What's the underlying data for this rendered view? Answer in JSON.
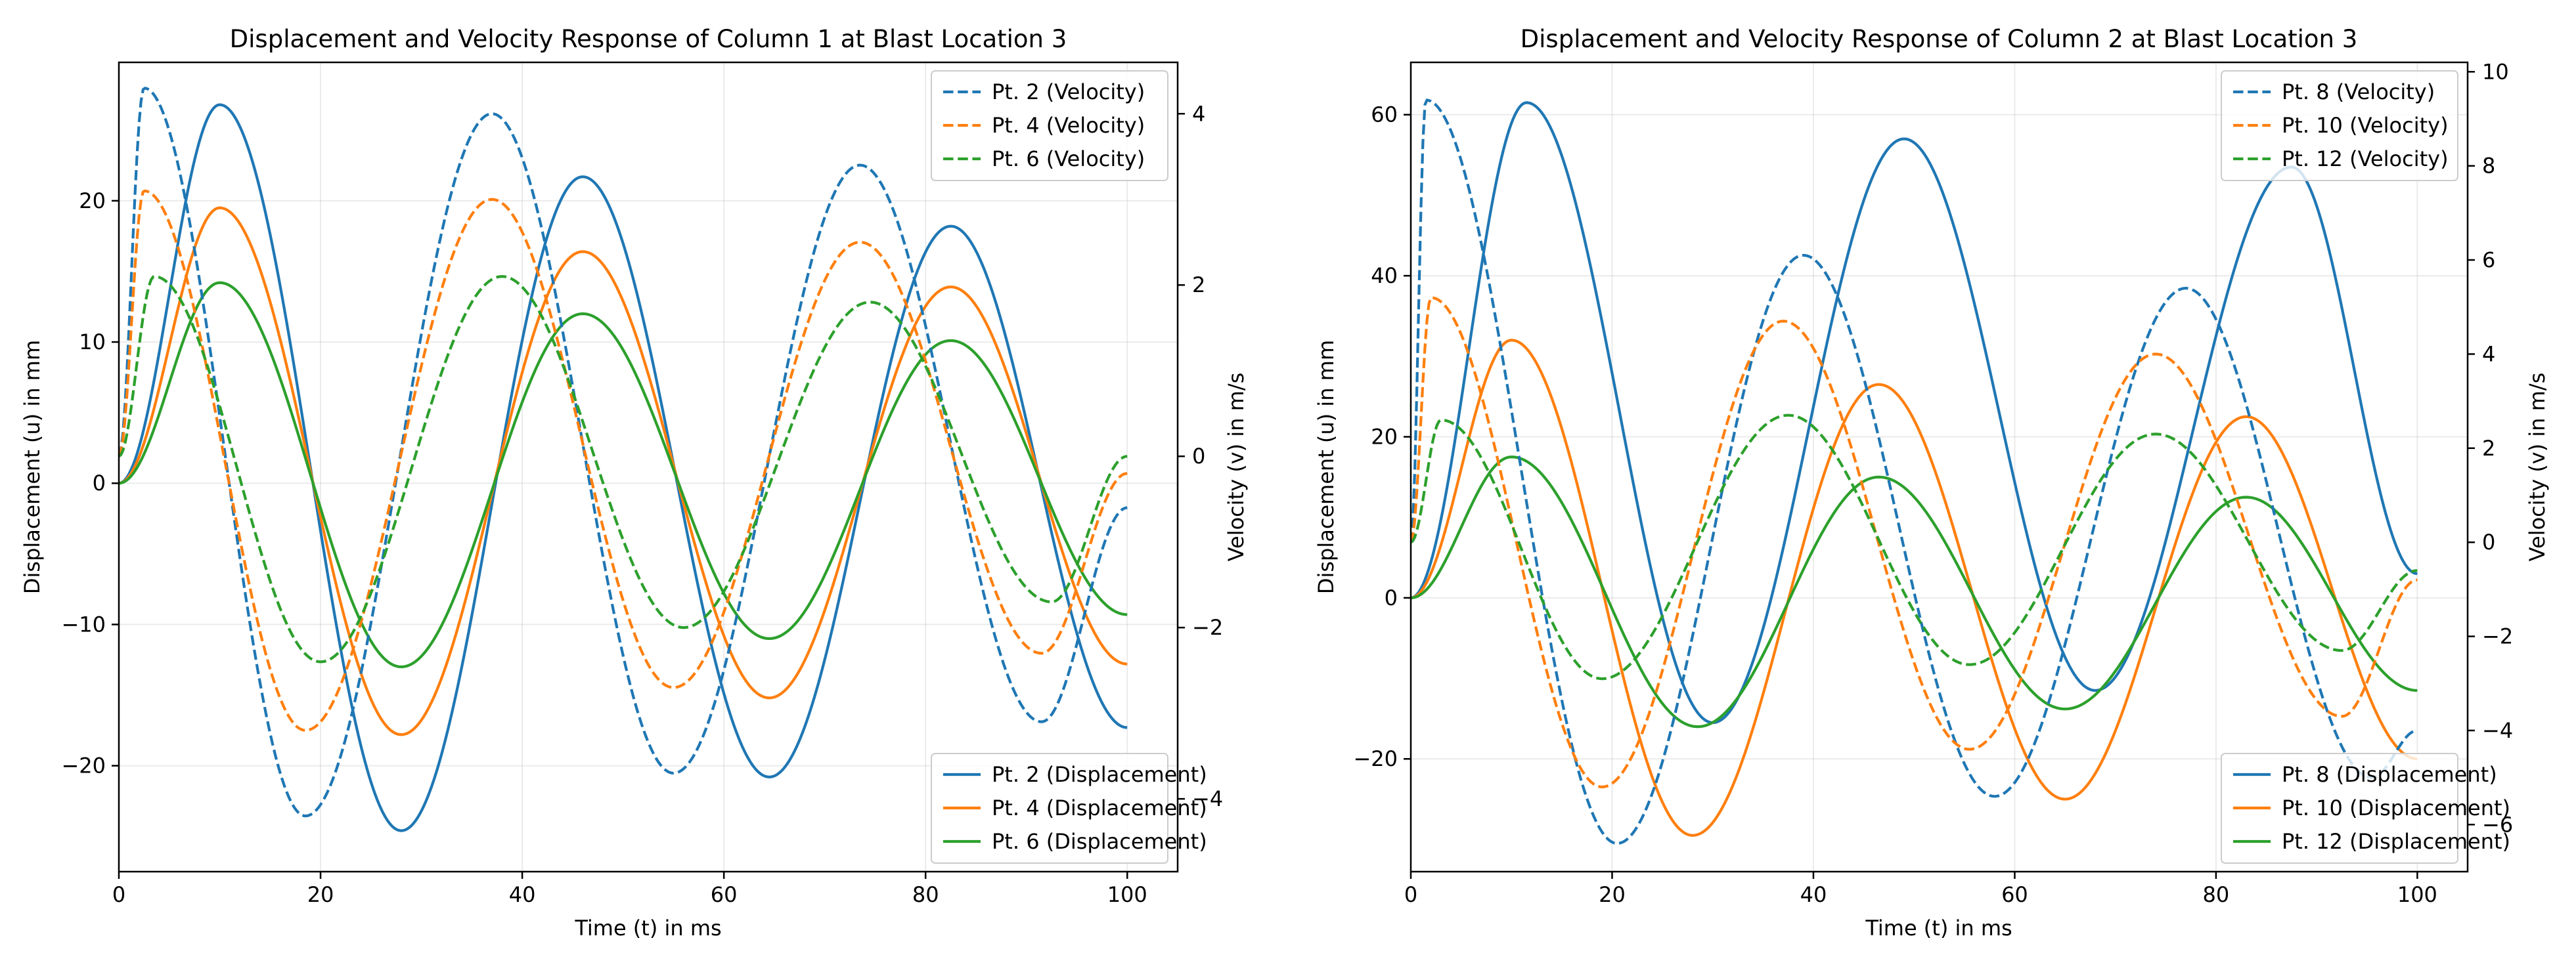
{
  "figure": {
    "background": "#ffffff"
  },
  "chart_data": [
    {
      "type": "line",
      "title": "Displacement and Velocity Response of Column 1 at Blast Location 3",
      "xlabel": "Time (t) in ms",
      "ylabel": "Displacement (u) in mm",
      "y2label": "Velocity (v) in m/s",
      "xlim": [
        0,
        105
      ],
      "ylim": [
        -27.5,
        29.8
      ],
      "y2lim": [
        -4.85,
        4.6
      ],
      "xticks": [
        0,
        20,
        40,
        60,
        80,
        100
      ],
      "yticks": [
        -20,
        -10,
        0,
        10,
        20
      ],
      "y2ticks": [
        -4,
        -2,
        0,
        2,
        4
      ],
      "grid": true,
      "legend_velocity": "top-right",
      "legend_displacement": "bottom-right",
      "x": [
        0,
        5,
        10,
        15,
        20,
        25,
        30,
        35,
        40,
        45,
        50,
        55,
        60,
        65,
        70,
        75,
        80,
        85,
        90,
        95,
        100
      ],
      "series": [
        {
          "name": "Pt. 2 (Displacement)",
          "axis": "left",
          "style": "solid",
          "color": "#1f77b4",
          "peaks": [
            [
              0,
              0
            ],
            [
              10,
              26.8
            ],
            [
              28,
              -24.6
            ],
            [
              46,
              21.7
            ],
            [
              64.5,
              -20.8
            ],
            [
              82.5,
              18.2
            ],
            [
              100,
              -17.3
            ]
          ]
        },
        {
          "name": "Pt. 4 (Displacement)",
          "axis": "left",
          "style": "solid",
          "color": "#ff7f0e",
          "peaks": [
            [
              0,
              0
            ],
            [
              10,
              19.5
            ],
            [
              28,
              -17.8
            ],
            [
              46,
              16.4
            ],
            [
              64.5,
              -15.2
            ],
            [
              82.5,
              13.9
            ],
            [
              100,
              -12.8
            ]
          ]
        },
        {
          "name": "Pt. 6 (Displacement)",
          "axis": "left",
          "style": "solid",
          "color": "#2ca02c",
          "peaks": [
            [
              0,
              0
            ],
            [
              10,
              14.2
            ],
            [
              28,
              -13.0
            ],
            [
              46,
              12.0
            ],
            [
              64.5,
              -11.0
            ],
            [
              82.5,
              10.1
            ],
            [
              100,
              -9.3
            ]
          ]
        },
        {
          "name": "Pt. 2 (Velocity)",
          "axis": "right",
          "style": "dashed",
          "color": "#1f77b4",
          "peaks": [
            [
              0,
              0
            ],
            [
              2.5,
              4.3
            ],
            [
              18.5,
              -4.2
            ],
            [
              37,
              4.0
            ],
            [
              55,
              -3.7
            ],
            [
              73.5,
              3.4
            ],
            [
              91.5,
              -3.1
            ],
            [
              100,
              -0.6
            ]
          ]
        },
        {
          "name": "Pt. 4 (Velocity)",
          "axis": "right",
          "style": "dashed",
          "color": "#ff7f0e",
          "peaks": [
            [
              0,
              0
            ],
            [
              2.5,
              3.1
            ],
            [
              18.5,
              -3.2
            ],
            [
              37,
              3.0
            ],
            [
              55,
              -2.7
            ],
            [
              73.5,
              2.5
            ],
            [
              91.5,
              -2.3
            ],
            [
              100,
              -0.2
            ]
          ]
        },
        {
          "name": "Pt. 6 (Velocity)",
          "axis": "right",
          "style": "dashed",
          "color": "#2ca02c",
          "peaks": [
            [
              0,
              0
            ],
            [
              3.5,
              2.1
            ],
            [
              20,
              -2.4
            ],
            [
              38,
              2.1
            ],
            [
              56,
              -2.0
            ],
            [
              74.5,
              1.8
            ],
            [
              92.5,
              -1.7
            ],
            [
              100,
              0.0
            ]
          ]
        }
      ]
    },
    {
      "type": "line",
      "title": "Displacement and Velocity Response of Column 2 at Blast Location 3",
      "xlabel": "Time (t) in ms",
      "ylabel": "Displacement (u) in mm",
      "y2label": "Velocity (v) in m/s",
      "xlim": [
        0,
        105
      ],
      "ylim": [
        -34,
        66.5
      ],
      "y2lim": [
        -7.0,
        10.2
      ],
      "xticks": [
        0,
        20,
        40,
        60,
        80,
        100
      ],
      "yticks": [
        -20,
        0,
        20,
        40,
        60
      ],
      "y2ticks": [
        -6,
        -4,
        -2,
        0,
        2,
        4,
        6,
        8,
        10
      ],
      "grid": true,
      "legend_velocity": "top-right",
      "legend_displacement": "bottom-right",
      "x": [
        0,
        5,
        10,
        15,
        20,
        25,
        30,
        35,
        40,
        45,
        50,
        55,
        60,
        65,
        70,
        75,
        80,
        85,
        90,
        95,
        100
      ],
      "series": [
        {
          "name": "Pt. 8 (Displacement)",
          "axis": "left",
          "style": "solid",
          "color": "#1f77b4",
          "peaks": [
            [
              0,
              0
            ],
            [
              11.5,
              61.5
            ],
            [
              30,
              -15.5
            ],
            [
              49,
              57.0
            ],
            [
              68,
              -11.5
            ],
            [
              87.5,
              53.5
            ],
            [
              100,
              3.0
            ]
          ]
        },
        {
          "name": "Pt. 10 (Displacement)",
          "axis": "left",
          "style": "solid",
          "color": "#ff7f0e",
          "peaks": [
            [
              0,
              0
            ],
            [
              10,
              32.0
            ],
            [
              28,
              -29.5
            ],
            [
              46.5,
              26.5
            ],
            [
              65,
              -25.0
            ],
            [
              83,
              22.5
            ],
            [
              100,
              -20.0
            ]
          ]
        },
        {
          "name": "Pt. 12 (Displacement)",
          "axis": "left",
          "style": "solid",
          "color": "#2ca02c",
          "peaks": [
            [
              0,
              0
            ],
            [
              10,
              17.5
            ],
            [
              28.5,
              -16.0
            ],
            [
              46.5,
              15.0
            ],
            [
              65,
              -13.8
            ],
            [
              83,
              12.5
            ],
            [
              100,
              -11.5
            ]
          ]
        },
        {
          "name": "Pt. 8 (Velocity)",
          "axis": "right",
          "style": "dashed",
          "color": "#1f77b4",
          "peaks": [
            [
              0,
              0
            ],
            [
              1.5,
              9.4
            ],
            [
              20.5,
              -6.4
            ],
            [
              39,
              6.1
            ],
            [
              58,
              -5.4
            ],
            [
              77,
              5.4
            ],
            [
              95.5,
              -5.0
            ],
            [
              100,
              -4.0
            ]
          ]
        },
        {
          "name": "Pt. 10 (Velocity)",
          "axis": "right",
          "style": "dashed",
          "color": "#ff7f0e",
          "peaks": [
            [
              0,
              0
            ],
            [
              2,
              5.2
            ],
            [
              19,
              -5.2
            ],
            [
              37,
              4.7
            ],
            [
              55.5,
              -4.4
            ],
            [
              74,
              4.0
            ],
            [
              92.5,
              -3.7
            ],
            [
              100,
              -0.8
            ]
          ]
        },
        {
          "name": "Pt. 12 (Velocity)",
          "axis": "right",
          "style": "dashed",
          "color": "#2ca02c",
          "peaks": [
            [
              0,
              0
            ],
            [
              3,
              2.6
            ],
            [
              19,
              -2.9
            ],
            [
              37.5,
              2.7
            ],
            [
              55.5,
              -2.6
            ],
            [
              74,
              2.3
            ],
            [
              92.5,
              -2.3
            ],
            [
              100,
              -0.6
            ]
          ]
        }
      ]
    }
  ]
}
